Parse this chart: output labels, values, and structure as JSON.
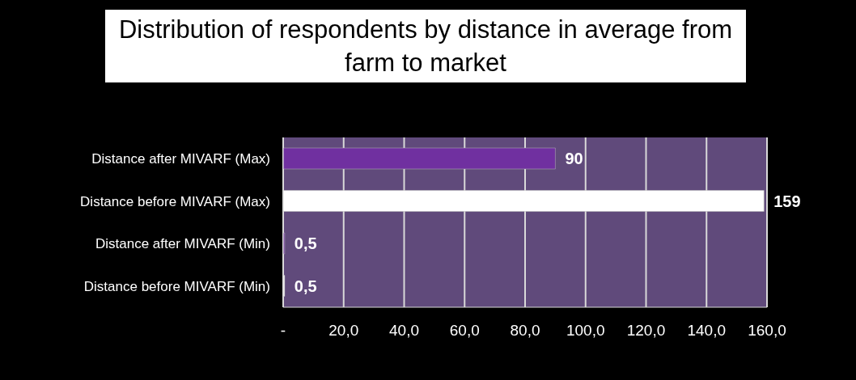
{
  "chart_data": {
    "type": "bar",
    "orientation": "horizontal",
    "title": "Distribution of respondents by distance in average from farm to market",
    "categories": [
      "Distance after MIVARF (Max)",
      "Distance before MIVARF (Max)",
      "Distance after MIVARF (Min)",
      "Distance before MIVARF (Min)"
    ],
    "values": [
      90,
      159,
      0.5,
      0.5
    ],
    "colors": [
      "#7030a0",
      "#ffffff",
      "#7030a0",
      "#ffffff"
    ],
    "value_labels": [
      "90",
      "159",
      "0,5",
      "0,5"
    ],
    "xlim": [
      0,
      160
    ],
    "xticks": [
      {
        "value": 0,
        "label": "-"
      },
      {
        "value": 20,
        "label": "20,0"
      },
      {
        "value": 40,
        "label": "40,0"
      },
      {
        "value": 60,
        "label": "60,0"
      },
      {
        "value": 80,
        "label": "80,0"
      },
      {
        "value": 100,
        "label": "100,0"
      },
      {
        "value": 120,
        "label": "120,0"
      },
      {
        "value": 140,
        "label": "140,0"
      },
      {
        "value": 160,
        "label": "160,0"
      }
    ],
    "grid": "x",
    "legend": false
  }
}
